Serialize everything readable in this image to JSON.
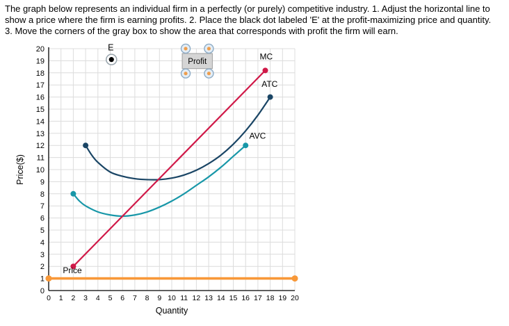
{
  "instructions": "The graph below represents an individual firm in a perfectly (or purely) competitive industry. 1. Adjust the horizontal line to show a price where the firm is earning profits. 2. Place the black dot labeled 'E' at the profit-maximizing price and quantity. 3. Move the corners of the gray box to show the area that corresponds with profit the firm will earn.",
  "chart_data": {
    "type": "line",
    "title": "",
    "xlabel": "Quantity",
    "ylabel": "Price($)",
    "xlim": [
      0,
      20
    ],
    "ylim": [
      0,
      20
    ],
    "grid": true,
    "x_ticks": [
      0,
      1,
      2,
      3,
      4,
      5,
      6,
      7,
      8,
      9,
      10,
      11,
      12,
      13,
      14,
      15,
      16,
      17,
      18,
      19,
      20
    ],
    "y_ticks": [
      0,
      1,
      2,
      3,
      4,
      5,
      6,
      7,
      8,
      9,
      10,
      11,
      12,
      13,
      14,
      15,
      16,
      17,
      18,
      19,
      20
    ],
    "colors": {
      "grid": "#dcdcdc",
      "axis": "#000000",
      "mc": "#d01948",
      "atc": "#1a4565",
      "avc": "#1897a8",
      "price": "#f89838"
    },
    "series": [
      {
        "name": "AVC",
        "color": "#1897a8",
        "width": 2.2,
        "dot_r": 4,
        "interactable": false,
        "label_pos": [
          16.3,
          12.55
        ],
        "points": [
          [
            2,
            8
          ],
          [
            2.5,
            7.4
          ],
          [
            3,
            7.0
          ],
          [
            4,
            6.5
          ],
          [
            5,
            6.25
          ],
          [
            6,
            6.15
          ],
          [
            7,
            6.25
          ],
          [
            8,
            6.5
          ],
          [
            9,
            6.9
          ],
          [
            10,
            7.4
          ],
          [
            11,
            8.0
          ],
          [
            12,
            8.7
          ],
          [
            13,
            9.4
          ],
          [
            14,
            10.2
          ],
          [
            15,
            11.1
          ],
          [
            16,
            12
          ]
        ]
      },
      {
        "name": "ATC",
        "color": "#1a4565",
        "width": 2.2,
        "dot_r": 4,
        "interactable": false,
        "label_pos": [
          17.3,
          16.85
        ],
        "points": [
          [
            3,
            12
          ],
          [
            3.5,
            11.2
          ],
          [
            4,
            10.6
          ],
          [
            5,
            9.8
          ],
          [
            6,
            9.45
          ],
          [
            7,
            9.25
          ],
          [
            8,
            9.17
          ],
          [
            9,
            9.17
          ],
          [
            10,
            9.3
          ],
          [
            11,
            9.55
          ],
          [
            12,
            9.95
          ],
          [
            13,
            10.5
          ],
          [
            14,
            11.2
          ],
          [
            15,
            12.1
          ],
          [
            16,
            13.2
          ],
          [
            17,
            14.5
          ],
          [
            18,
            16
          ]
        ]
      },
      {
        "name": "MC",
        "color": "#d01948",
        "width": 2.2,
        "dot_r": 4,
        "interactable": false,
        "label_pos": [
          17.15,
          19.1
        ],
        "points": [
          [
            2,
            2
          ],
          [
            17.6,
            18.2
          ]
        ]
      },
      {
        "name": "Price",
        "color": "#f89838",
        "width": 3.6,
        "dot_r": 4.5,
        "interactable": true,
        "label_pos": [
          1.15,
          1.45
        ],
        "points": [
          [
            0,
            1
          ],
          [
            20,
            1
          ]
        ]
      }
    ],
    "widgets": {
      "e_point": {
        "label": "E",
        "x": 5.1,
        "y": 19.1
      },
      "profit_box": {
        "label": "Profit",
        "x1": 10.85,
        "y1": 18.35,
        "x2": 13.3,
        "y2": 19.6
      }
    }
  }
}
